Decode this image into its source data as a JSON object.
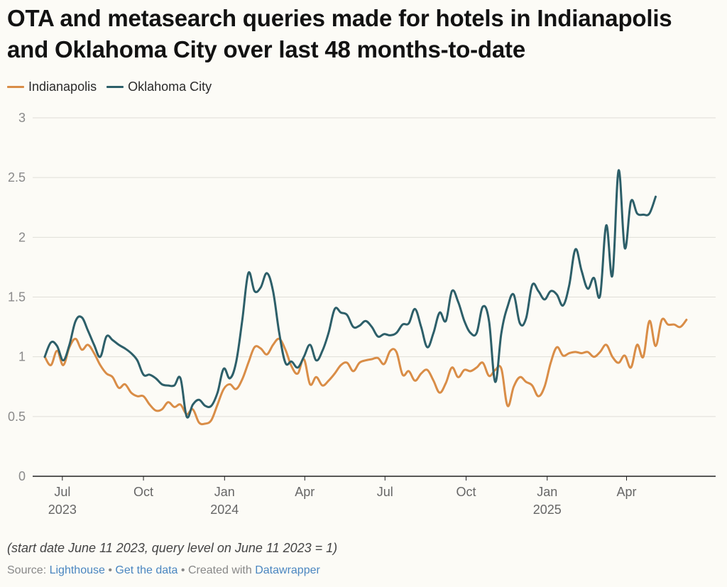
{
  "title": "OTA and metasearch queries made for hotels in Indianapolis and Oklahoma City over last 48 months-to-date",
  "note": "(start date June 11 2023, query level on June 11 2023 = 1)",
  "footer": {
    "source_label": "Source: ",
    "source_link": "Lighthouse",
    "sep1": " • ",
    "data_link": "Get the data",
    "sep2": " • Created with ",
    "tool_link": "Datawrapper"
  },
  "colors": {
    "indianapolis": "#d98d47",
    "oklahoma": "#2d5f69",
    "grid": "#e0ded8",
    "axis": "#222222",
    "tick": "#8a8a8a"
  },
  "chart_data": {
    "type": "line",
    "ylim": [
      0,
      3
    ],
    "yticks": [
      "0",
      "0.5",
      "1",
      "1.5",
      "2",
      "2.5",
      "3"
    ],
    "xlim": [
      "2023-06-11",
      "2025-06-29"
    ],
    "xticks": [
      {
        "date": "2023-07-01",
        "label": "Jul",
        "year": "2023"
      },
      {
        "date": "2023-10-01",
        "label": "Oct",
        "year": ""
      },
      {
        "date": "2024-01-01",
        "label": "Jan",
        "year": "2024"
      },
      {
        "date": "2024-04-01",
        "label": "Apr",
        "year": ""
      },
      {
        "date": "2024-07-01",
        "label": "Jul",
        "year": ""
      },
      {
        "date": "2024-10-01",
        "label": "Oct",
        "year": ""
      },
      {
        "date": "2025-01-01",
        "label": "Jan",
        "year": "2025"
      },
      {
        "date": "2025-04-01",
        "label": "Apr",
        "year": ""
      }
    ],
    "legend_position": "top-left",
    "grid": true,
    "series": [
      {
        "name": "Indianapolis",
        "key": "indianapolis",
        "points": [
          [
            "2023-06-11",
            1.0
          ],
          [
            "2023-06-18",
            0.93
          ],
          [
            "2023-06-25",
            1.05
          ],
          [
            "2023-07-02",
            0.93
          ],
          [
            "2023-07-09",
            1.08
          ],
          [
            "2023-07-16",
            1.15
          ],
          [
            "2023-07-23",
            1.06
          ],
          [
            "2023-07-30",
            1.1
          ],
          [
            "2023-08-06",
            1.03
          ],
          [
            "2023-08-13",
            0.93
          ],
          [
            "2023-08-20",
            0.86
          ],
          [
            "2023-08-27",
            0.83
          ],
          [
            "2023-09-03",
            0.74
          ],
          [
            "2023-09-10",
            0.77
          ],
          [
            "2023-09-17",
            0.7
          ],
          [
            "2023-09-24",
            0.67
          ],
          [
            "2023-10-01",
            0.67
          ],
          [
            "2023-10-08",
            0.6
          ],
          [
            "2023-10-15",
            0.55
          ],
          [
            "2023-10-22",
            0.56
          ],
          [
            "2023-10-29",
            0.62
          ],
          [
            "2023-11-05",
            0.58
          ],
          [
            "2023-11-12",
            0.6
          ],
          [
            "2023-11-19",
            0.52
          ],
          [
            "2023-11-26",
            0.56
          ],
          [
            "2023-12-03",
            0.45
          ],
          [
            "2023-12-10",
            0.44
          ],
          [
            "2023-12-17",
            0.47
          ],
          [
            "2023-12-24",
            0.6
          ],
          [
            "2023-12-31",
            0.73
          ],
          [
            "2024-01-07",
            0.77
          ],
          [
            "2024-01-14",
            0.73
          ],
          [
            "2024-01-21",
            0.81
          ],
          [
            "2024-01-28",
            0.95
          ],
          [
            "2024-02-04",
            1.08
          ],
          [
            "2024-02-11",
            1.07
          ],
          [
            "2024-02-18",
            1.02
          ],
          [
            "2024-02-25",
            1.1
          ],
          [
            "2024-03-03",
            1.15
          ],
          [
            "2024-03-10",
            1.06
          ],
          [
            "2024-03-17",
            0.92
          ],
          [
            "2024-03-24",
            0.86
          ],
          [
            "2024-03-31",
            0.98
          ],
          [
            "2024-04-07",
            0.77
          ],
          [
            "2024-04-14",
            0.83
          ],
          [
            "2024-04-21",
            0.76
          ],
          [
            "2024-04-28",
            0.8
          ],
          [
            "2024-05-05",
            0.86
          ],
          [
            "2024-05-12",
            0.93
          ],
          [
            "2024-05-19",
            0.95
          ],
          [
            "2024-05-26",
            0.88
          ],
          [
            "2024-06-02",
            0.95
          ],
          [
            "2024-06-09",
            0.97
          ],
          [
            "2024-06-16",
            0.98
          ],
          [
            "2024-06-23",
            0.99
          ],
          [
            "2024-06-30",
            0.94
          ],
          [
            "2024-07-07",
            1.05
          ],
          [
            "2024-07-14",
            1.04
          ],
          [
            "2024-07-21",
            0.85
          ],
          [
            "2024-07-28",
            0.88
          ],
          [
            "2024-08-04",
            0.8
          ],
          [
            "2024-08-11",
            0.86
          ],
          [
            "2024-08-18",
            0.89
          ],
          [
            "2024-08-25",
            0.8
          ],
          [
            "2024-09-01",
            0.7
          ],
          [
            "2024-09-08",
            0.78
          ],
          [
            "2024-09-15",
            0.91
          ],
          [
            "2024-09-22",
            0.83
          ],
          [
            "2024-09-29",
            0.89
          ],
          [
            "2024-10-06",
            0.88
          ],
          [
            "2024-10-13",
            0.91
          ],
          [
            "2024-10-20",
            0.95
          ],
          [
            "2024-10-27",
            0.84
          ],
          [
            "2024-11-03",
            0.89
          ],
          [
            "2024-11-10",
            0.9
          ],
          [
            "2024-11-17",
            0.59
          ],
          [
            "2024-11-24",
            0.75
          ],
          [
            "2024-12-01",
            0.83
          ],
          [
            "2024-12-08",
            0.79
          ],
          [
            "2024-12-15",
            0.76
          ],
          [
            "2024-12-22",
            0.67
          ],
          [
            "2024-12-29",
            0.75
          ],
          [
            "2025-01-05",
            0.95
          ],
          [
            "2025-01-12",
            1.08
          ],
          [
            "2025-01-19",
            1.01
          ],
          [
            "2025-01-26",
            1.03
          ],
          [
            "2025-02-02",
            1.04
          ],
          [
            "2025-02-09",
            1.03
          ],
          [
            "2025-02-16",
            1.04
          ],
          [
            "2025-02-23",
            1.0
          ],
          [
            "2025-03-02",
            1.04
          ],
          [
            "2025-03-09",
            1.1
          ],
          [
            "2025-03-16",
            1.0
          ],
          [
            "2025-03-23",
            0.95
          ],
          [
            "2025-03-30",
            1.01
          ],
          [
            "2025-04-06",
            0.91
          ],
          [
            "2025-04-13",
            1.1
          ],
          [
            "2025-04-20",
            1.0
          ],
          [
            "2025-04-27",
            1.3
          ],
          [
            "2025-05-04",
            1.09
          ],
          [
            "2025-05-11",
            1.31
          ],
          [
            "2025-05-18",
            1.27
          ],
          [
            "2025-05-25",
            1.27
          ],
          [
            "2025-06-01",
            1.25
          ],
          [
            "2025-06-08",
            1.31
          ]
        ]
      },
      {
        "name": "Oklahoma City",
        "key": "oklahoma",
        "points": [
          [
            "2023-06-11",
            1.0
          ],
          [
            "2023-06-18",
            1.12
          ],
          [
            "2023-06-25",
            1.09
          ],
          [
            "2023-07-02",
            0.97
          ],
          [
            "2023-07-09",
            1.1
          ],
          [
            "2023-07-16",
            1.3
          ],
          [
            "2023-07-23",
            1.33
          ],
          [
            "2023-07-30",
            1.22
          ],
          [
            "2023-08-06",
            1.1
          ],
          [
            "2023-08-13",
            1.0
          ],
          [
            "2023-08-20",
            1.17
          ],
          [
            "2023-08-27",
            1.14
          ],
          [
            "2023-09-03",
            1.1
          ],
          [
            "2023-09-10",
            1.07
          ],
          [
            "2023-09-17",
            1.03
          ],
          [
            "2023-09-24",
            0.97
          ],
          [
            "2023-10-01",
            0.85
          ],
          [
            "2023-10-08",
            0.85
          ],
          [
            "2023-10-15",
            0.82
          ],
          [
            "2023-10-22",
            0.77
          ],
          [
            "2023-10-29",
            0.76
          ],
          [
            "2023-11-05",
            0.76
          ],
          [
            "2023-11-12",
            0.82
          ],
          [
            "2023-11-19",
            0.5
          ],
          [
            "2023-11-26",
            0.6
          ],
          [
            "2023-12-03",
            0.64
          ],
          [
            "2023-12-10",
            0.59
          ],
          [
            "2023-12-17",
            0.59
          ],
          [
            "2023-12-24",
            0.7
          ],
          [
            "2023-12-31",
            0.9
          ],
          [
            "2024-01-07",
            0.82
          ],
          [
            "2024-01-14",
            0.95
          ],
          [
            "2024-01-21",
            1.3
          ],
          [
            "2024-01-28",
            1.7
          ],
          [
            "2024-02-04",
            1.55
          ],
          [
            "2024-02-11",
            1.58
          ],
          [
            "2024-02-18",
            1.7
          ],
          [
            "2024-02-25",
            1.55
          ],
          [
            "2024-03-03",
            1.2
          ],
          [
            "2024-03-10",
            0.95
          ],
          [
            "2024-03-17",
            0.96
          ],
          [
            "2024-03-24",
            0.91
          ],
          [
            "2024-03-31",
            1.0
          ],
          [
            "2024-04-07",
            1.1
          ],
          [
            "2024-04-14",
            0.97
          ],
          [
            "2024-04-21",
            1.05
          ],
          [
            "2024-04-28",
            1.2
          ],
          [
            "2024-05-05",
            1.4
          ],
          [
            "2024-05-12",
            1.37
          ],
          [
            "2024-05-19",
            1.35
          ],
          [
            "2024-05-26",
            1.25
          ],
          [
            "2024-06-02",
            1.26
          ],
          [
            "2024-06-09",
            1.3
          ],
          [
            "2024-06-16",
            1.25
          ],
          [
            "2024-06-23",
            1.17
          ],
          [
            "2024-06-30",
            1.19
          ],
          [
            "2024-07-07",
            1.18
          ],
          [
            "2024-07-14",
            1.2
          ],
          [
            "2024-07-21",
            1.27
          ],
          [
            "2024-07-28",
            1.28
          ],
          [
            "2024-08-04",
            1.4
          ],
          [
            "2024-08-11",
            1.25
          ],
          [
            "2024-08-18",
            1.08
          ],
          [
            "2024-08-25",
            1.2
          ],
          [
            "2024-09-01",
            1.37
          ],
          [
            "2024-09-08",
            1.3
          ],
          [
            "2024-09-15",
            1.55
          ],
          [
            "2024-09-22",
            1.46
          ],
          [
            "2024-09-29",
            1.3
          ],
          [
            "2024-10-06",
            1.2
          ],
          [
            "2024-10-13",
            1.2
          ],
          [
            "2024-10-20",
            1.42
          ],
          [
            "2024-10-27",
            1.3
          ],
          [
            "2024-11-03",
            0.79
          ],
          [
            "2024-11-10",
            1.2
          ],
          [
            "2024-11-17",
            1.42
          ],
          [
            "2024-11-24",
            1.52
          ],
          [
            "2024-12-01",
            1.28
          ],
          [
            "2024-12-08",
            1.32
          ],
          [
            "2024-12-15",
            1.6
          ],
          [
            "2024-12-22",
            1.55
          ],
          [
            "2024-12-29",
            1.48
          ],
          [
            "2025-01-05",
            1.55
          ],
          [
            "2025-01-12",
            1.52
          ],
          [
            "2025-01-19",
            1.43
          ],
          [
            "2025-01-26",
            1.6
          ],
          [
            "2025-02-02",
            1.9
          ],
          [
            "2025-02-09",
            1.72
          ],
          [
            "2025-02-16",
            1.57
          ],
          [
            "2025-02-23",
            1.66
          ],
          [
            "2025-03-02",
            1.51
          ],
          [
            "2025-03-09",
            2.1
          ],
          [
            "2025-03-16",
            1.68
          ],
          [
            "2025-03-23",
            2.56
          ],
          [
            "2025-03-30",
            1.91
          ],
          [
            "2025-04-06",
            2.3
          ],
          [
            "2025-04-13",
            2.2
          ],
          [
            "2025-04-20",
            2.19
          ],
          [
            "2025-04-27",
            2.2
          ],
          [
            "2025-05-04",
            2.34
          ]
        ]
      }
    ]
  }
}
